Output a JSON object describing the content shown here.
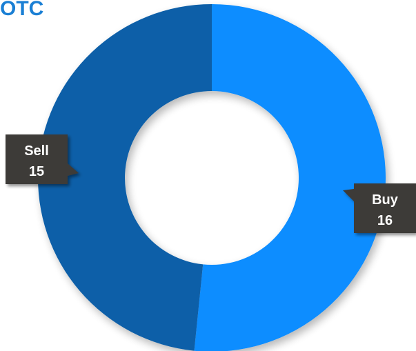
{
  "chart_data": {
    "type": "pie",
    "title": "OTC",
    "donut": true,
    "categories": [
      "Buy",
      "Sell"
    ],
    "values": [
      16,
      15
    ],
    "colors": [
      "#118dff",
      "#0a5ea8"
    ],
    "label_style": "callout",
    "legend": "none"
  }
}
